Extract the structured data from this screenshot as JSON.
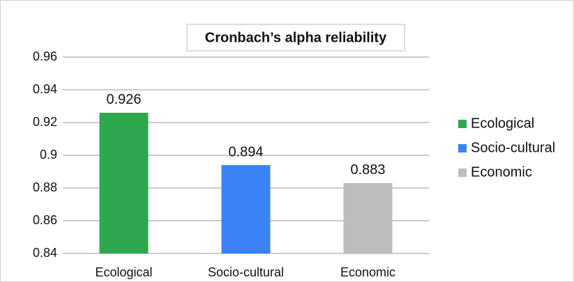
{
  "chart_data": {
    "type": "bar",
    "title": "Cronbach’s alpha reliability",
    "categories": [
      "Ecological",
      "Socio-cultural",
      "Economic"
    ],
    "values": [
      0.926,
      0.894,
      0.883
    ],
    "colors": [
      "#2ea84f",
      "#3b82f6",
      "#bdbdbd"
    ],
    "ylim": [
      0.84,
      0.96
    ],
    "yticks": [
      0.84,
      0.86,
      0.88,
      0.9,
      0.92,
      0.94,
      0.96
    ],
    "grid": true,
    "legend": "right"
  }
}
